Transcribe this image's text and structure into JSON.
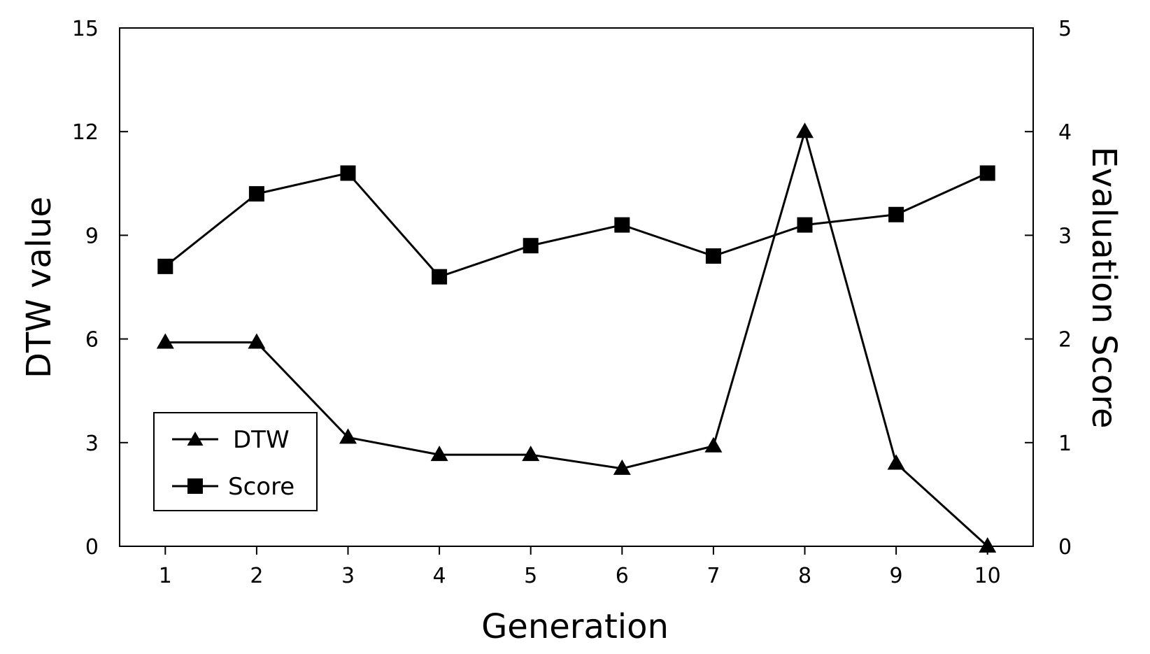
{
  "chart_data": {
    "type": "line",
    "title": "",
    "xlabel": "Generation",
    "ylabel": "DTW value",
    "y2label": "Evaluation Score",
    "x": [
      1,
      2,
      3,
      4,
      5,
      6,
      7,
      8,
      9,
      10
    ],
    "x_tick_labels": [
      "1",
      "2",
      "3",
      "4",
      "5",
      "6",
      "7",
      "8",
      "9",
      "10"
    ],
    "xlim": [
      0.5,
      10.5
    ],
    "ylim": [
      0,
      15
    ],
    "y_ticks": [
      0,
      3,
      6,
      9,
      12,
      15
    ],
    "y_tick_labels": [
      "0",
      "3",
      "6",
      "9",
      "12",
      "15"
    ],
    "y2lim": [
      0,
      5
    ],
    "y2_ticks": [
      0,
      1,
      2,
      3,
      4,
      5
    ],
    "y2_tick_labels": [
      "0",
      "1",
      "2",
      "3",
      "4",
      "5"
    ],
    "grid": false,
    "legend_position": "bottom-left",
    "series": [
      {
        "name": "DTW",
        "axis": "left",
        "marker": "triangle",
        "values": [
          5.9,
          5.9,
          3.15,
          2.65,
          2.65,
          2.25,
          2.9,
          12.0,
          2.4,
          0.0
        ]
      },
      {
        "name": "Score",
        "axis": "right",
        "marker": "square",
        "values": [
          2.7,
          3.4,
          3.6,
          2.6,
          2.9,
          3.1,
          2.8,
          3.1,
          3.2,
          3.6
        ]
      }
    ]
  }
}
